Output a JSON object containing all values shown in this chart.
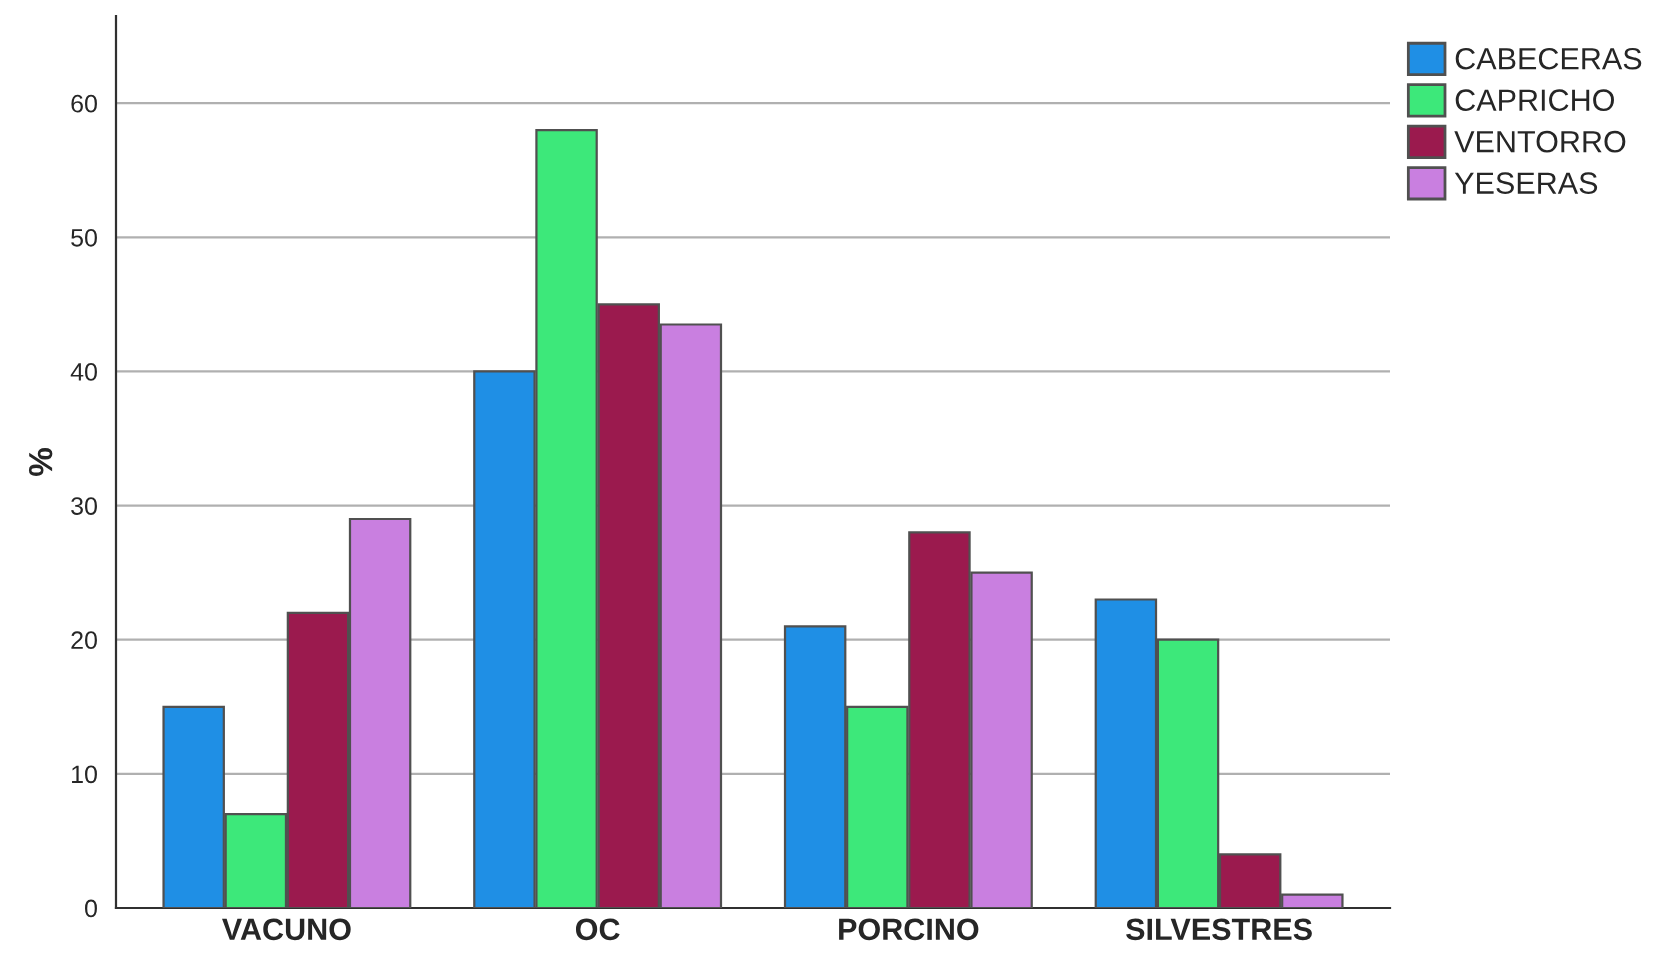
{
  "chart_data": {
    "type": "bar",
    "ylabel": "%",
    "categories": [
      "VACUNO",
      "OC",
      "PORCINO",
      "SILVESTRES"
    ],
    "series": [
      {
        "name": "CABECERAS",
        "color": "#1f8fe5",
        "values": [
          15,
          40,
          21,
          23
        ]
      },
      {
        "name": "CAPRICHO",
        "color": "#3de87a",
        "values": [
          7,
          58,
          15,
          20
        ]
      },
      {
        "name": "VENTORRO",
        "color": "#9b1a4e",
        "values": [
          22,
          45,
          28,
          4
        ]
      },
      {
        "name": "YESERAS",
        "color": "#c97fe0",
        "values": [
          29,
          43.5,
          25,
          1
        ]
      }
    ],
    "ylim": [
      0,
      66.5
    ],
    "yticks": [
      0,
      10,
      20,
      30,
      40,
      50,
      60
    ],
    "grid": "y",
    "legend": "top right"
  }
}
